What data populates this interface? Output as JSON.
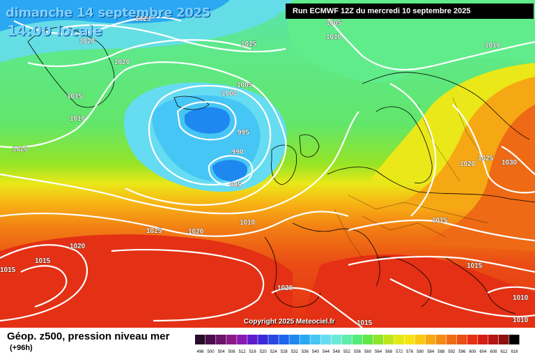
{
  "header": {
    "date_line": "dimanche 14 septembre 2025",
    "time_line": "14:00 locale",
    "run_label": "Run ECMWF 12Z du mercredi 10 septembre 2025"
  },
  "map": {
    "copyright": "Copyright 2025 Meteociel.fr",
    "isobar_labels": [
      "1020",
      "1015",
      "1025",
      "1005",
      "1010",
      "1010",
      "1020",
      "1015",
      "1010",
      "1020",
      "1005",
      "1000",
      "995",
      "990",
      "985",
      "1010",
      "1025",
      "1020",
      "1020",
      "1030",
      "1025",
      "1015",
      "1015",
      "1020",
      "1015",
      "1020",
      "1015",
      "1015",
      "1010",
      "1010"
    ],
    "colors": {
      "low_center": "#1e88f0",
      "high_center": "#e41414",
      "isobar": "#ffffff",
      "coastline": "#000000"
    }
  },
  "legend": {
    "title": "Géop. z500, pression niveau mer",
    "subtitle": "(+96h)",
    "scale_values": [
      "496",
      "500",
      "504",
      "508",
      "512",
      "516",
      "520",
      "524",
      "528",
      "532",
      "536",
      "540",
      "544",
      "548",
      "552",
      "556",
      "560",
      "564",
      "568",
      "572",
      "576",
      "580",
      "584",
      "588",
      "592",
      "596",
      "600",
      "604",
      "608",
      "612",
      "616"
    ],
    "scale_colors": [
      "#2a0a2a",
      "#4a0f4a",
      "#6a146a",
      "#8a1a8a",
      "#8b1ab0",
      "#5e1ccb",
      "#3a2ad6",
      "#2a48e0",
      "#1e64ee",
      "#1e88f0",
      "#2aa8f2",
      "#46c6f4",
      "#66dcf2",
      "#6ee8d6",
      "#60ecaa",
      "#56ec7c",
      "#64e846",
      "#8ee428",
      "#bce61a",
      "#e2ea16",
      "#f6e414",
      "#f8c814",
      "#f6a814",
      "#f48a14",
      "#f06c14",
      "#ea4e14",
      "#e43014",
      "#d41e14",
      "#b41614",
      "#901010",
      "#000000"
    ]
  }
}
